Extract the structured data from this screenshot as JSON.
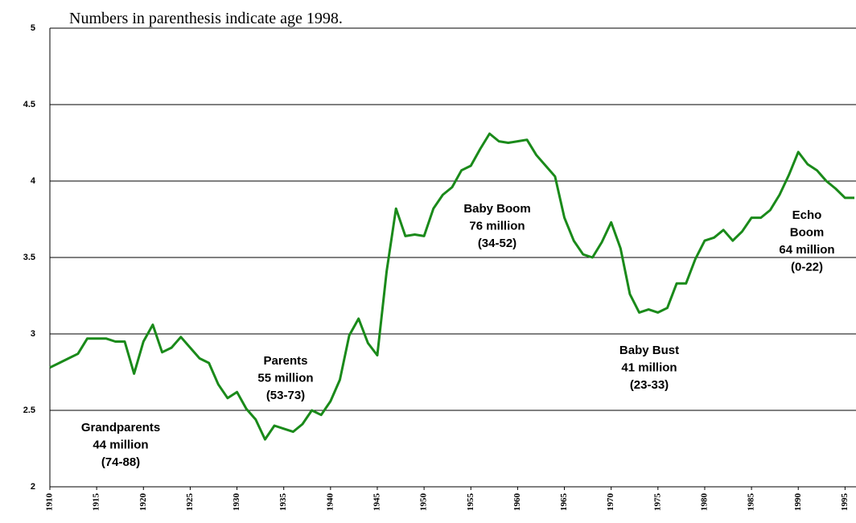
{
  "chart_data": {
    "type": "line",
    "subtitle": "Numbers in parenthesis indicate age 1998.",
    "x": [
      1910,
      1911,
      1912,
      1913,
      1914,
      1915,
      1916,
      1917,
      1918,
      1919,
      1920,
      1921,
      1922,
      1923,
      1924,
      1925,
      1926,
      1927,
      1928,
      1929,
      1930,
      1931,
      1932,
      1933,
      1934,
      1935,
      1936,
      1937,
      1938,
      1939,
      1940,
      1941,
      1942,
      1943,
      1944,
      1945,
      1946,
      1947,
      1948,
      1949,
      1950,
      1951,
      1952,
      1953,
      1954,
      1955,
      1956,
      1957,
      1958,
      1959,
      1960,
      1961,
      1962,
      1963,
      1964,
      1965,
      1966,
      1967,
      1968,
      1969,
      1970,
      1971,
      1972,
      1973,
      1974,
      1975,
      1976,
      1977,
      1978,
      1979,
      1980,
      1981,
      1982,
      1983,
      1984,
      1985,
      1986,
      1987,
      1988,
      1989,
      1990,
      1991,
      1992,
      1993,
      1994,
      1995,
      1996
    ],
    "series": [
      {
        "color": "#1a8a1a",
        "values": [
          2.78,
          2.81,
          2.84,
          2.87,
          2.97,
          2.97,
          2.97,
          2.95,
          2.95,
          2.74,
          2.95,
          3.06,
          2.88,
          2.91,
          2.98,
          2.91,
          2.84,
          2.81,
          2.67,
          2.58,
          2.62,
          2.51,
          2.44,
          2.31,
          2.4,
          2.38,
          2.36,
          2.41,
          2.5,
          2.47,
          2.56,
          2.7,
          2.99,
          3.1,
          2.94,
          2.86,
          3.41,
          3.82,
          3.64,
          3.65,
          3.64,
          3.82,
          3.91,
          3.96,
          4.07,
          4.1,
          4.21,
          4.31,
          4.26,
          4.25,
          4.26,
          4.27,
          4.17,
          4.1,
          4.03,
          3.76,
          3.61,
          3.52,
          3.5,
          3.6,
          3.73,
          3.56,
          3.26,
          3.14,
          3.16,
          3.14,
          3.17,
          3.33,
          3.33,
          3.49,
          3.61,
          3.63,
          3.68,
          3.61,
          3.67,
          3.76,
          3.76,
          3.81,
          3.91,
          4.04,
          4.19,
          4.11,
          4.07,
          4.0,
          3.95,
          3.89,
          3.89
        ]
      }
    ],
    "xlim": [
      1910,
      1996
    ],
    "xticks": [
      1910,
      1915,
      1920,
      1925,
      1930,
      1935,
      1940,
      1945,
      1950,
      1955,
      1960,
      1965,
      1970,
      1975,
      1980,
      1985,
      1990,
      1995
    ],
    "ylim": [
      2,
      5
    ],
    "yticks": [
      2,
      2.5,
      3,
      3.5,
      4,
      4.5,
      5
    ],
    "grid": true,
    "annotations": [
      {
        "lines": [
          "Grandparents",
          "44 million",
          "(74-88)"
        ]
      },
      {
        "lines": [
          "Parents",
          "55 million",
          "(53-73)"
        ]
      },
      {
        "lines": [
          "Baby Boom",
          "76 million",
          "(34-52)"
        ]
      },
      {
        "lines": [
          "Baby Bust",
          "41 million",
          "(23-33)"
        ]
      },
      {
        "lines": [
          "Echo",
          "Boom",
          "64 million",
          "(0-22)"
        ]
      }
    ]
  }
}
